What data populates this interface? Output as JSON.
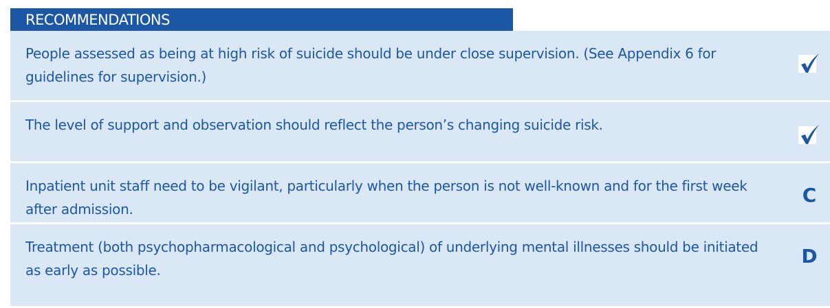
{
  "header": {
    "title": "RECOMMENDATIONS"
  },
  "recommendations": [
    {
      "text": "People assessed as being at high risk of suicide should be under close supervision. (See Appendix 6 for guidelines for supervision.)"
    },
    {
      "text": "The level of support and observation should reflect the person’s changing suicide risk."
    },
    {
      "text": "Inpatient unit staff need to be vigilant, particularly when the person is not well-known and for the first week after admission.",
      "grade": "C"
    },
    {
      "text": "Treatment (both psychopharmacological and psychological) of underlying mental illnesses should be initiated as early as possible.",
      "grade": "D"
    }
  ]
}
